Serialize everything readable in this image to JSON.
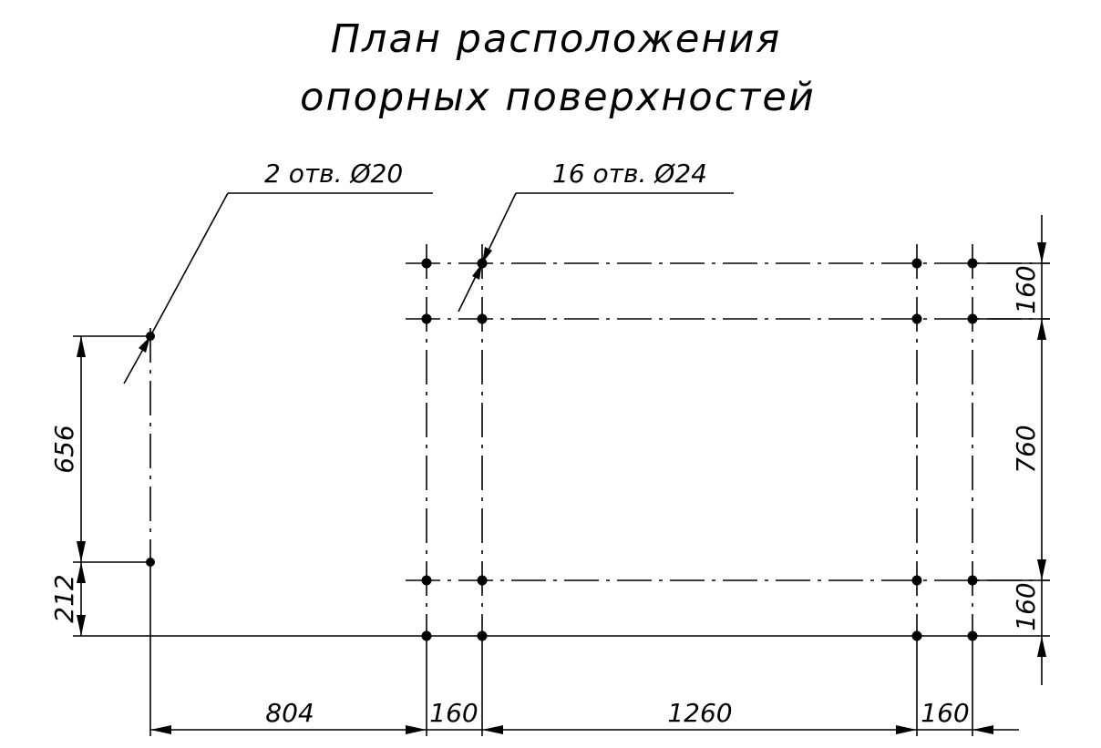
{
  "title": {
    "line1": "План расположения",
    "line2": "опорных поверхностей"
  },
  "callouts": {
    "left": "2 отв. Ø20",
    "right": "16 отв. Ø24"
  },
  "dimensions": {
    "left_upper": "656",
    "left_lower": "212",
    "right_top": "160",
    "right_middle": "760",
    "right_bottom": "160",
    "bottom_1": "804",
    "bottom_2": "160",
    "bottom_3": "1260",
    "bottom_4": "160"
  }
}
